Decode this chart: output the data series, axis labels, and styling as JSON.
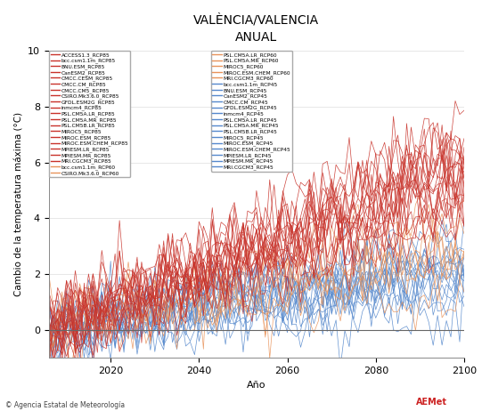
{
  "title": "VALÈNCIA/VALENCIA",
  "subtitle": "ANUAL",
  "ylabel": "Cambio de la temperatura máxima (°C)",
  "xlabel": "Año",
  "xlim": [
    2006,
    2100
  ],
  "ylim": [
    -1,
    10
  ],
  "yticks": [
    0,
    2,
    4,
    6,
    8,
    10
  ],
  "xticks": [
    2020,
    2040,
    2060,
    2080,
    2100
  ],
  "start_year": 2006,
  "end_year": 2100,
  "rcp85_color": "#C8322A",
  "rcp60_color": "#E8935A",
  "rcp45_color": "#5588CC",
  "rcp85_models": [
    "ACCESS1.3_RCP85",
    "bcc.csm1.1m_RCP85",
    "BNU.ESM_RCP85",
    "CanESM2_RCP85",
    "CMCC.CESM_RCP85",
    "CMCC.CM_RCP85",
    "CMCC.CM5_RCP85",
    "CSIRO.Mk3.6.0_RCP85",
    "GFDL.ESM2G_RCP85",
    "inmcm4_RCP85",
    "PSL.CM5A.LR_RCP85",
    "PSL.CM5A.MR_RCP85",
    "PSL.CM5B.LR_RCP85",
    "MIROC5_RCP85",
    "MIROC.ESM_RCP85",
    "MIROC.ESM.CHEM_RCP85",
    "MPIESM.LR_RCP85",
    "MPIESM.MR_RCP85",
    "MRI.CGCM3_RCP85"
  ],
  "rcp60_models": [
    "PSL.CM5A.LR_RCP60",
    "PSL.CM5A.MR_RCP60",
    "MIROC5_RCP60",
    "MIROC.ESM.CHEM_RCP60",
    "MRI.CGCM3_RCP60",
    "bcc.csm1.1m_RCP60",
    "CSIRO.Mk3.6.0_RCP60"
  ],
  "rcp45_models": [
    "bcc.csm1.1m_RCP45",
    "BNU.ESM_RCP45",
    "CanESM2_RCP45",
    "CMCC.CM_RCP45",
    "GFDL.ESM2G_RCP45",
    "inmcm4_RCP45",
    "PSL.CM5A.LR_RCP45",
    "PSL.CM5A.MR_RCP45",
    "PSL.CM5B.LR_RCP45",
    "MIROC5_RCP45",
    "MIROC.ESM_RCP45",
    "MIROC.ESM.CHEM_RCP45",
    "MPIESM.LR_RCP45",
    "MPIESM.MR_RCP45",
    "MRI.CGCM3_RCP45"
  ],
  "legend_left": [
    "ACCESS1.3_RCP85",
    "bcc.csm1.1m_RCP85",
    "BNU.ESM_RCP85",
    "CanESM2_RCP85",
    "CMCC.CESM_RCP85",
    "CMCC.CM_RCP85",
    "CMCC.CM5_RCP85",
    "CSIRO.Mk3.6.0_RCP85",
    "GFDL.ESM2G_RCP85",
    "inmcm4_RCP85",
    "PSL.CM5A.LR_RCP85",
    "PSL.CM5A.MR_RCP85",
    "PSL.CM5B.LR_RCP85",
    "MIROC5_RCP85",
    "MIROC.ESM_RCP85",
    "MIROC.ESM.CHEM_RCP85",
    "MPIESM.LR_RCP85",
    "MPIESM.MR_RCP85",
    "MRI.CGCM3_RCP85",
    "bcc.csm1.1m_RCP60",
    "CSIRO.Mk3.6.0_RCP60"
  ],
  "legend_right": [
    "PSL.CM5A.LR_RCP60",
    "PSL.CM5A.MR_RCP60",
    "MIROC5_RCP60",
    "MIROC.ESM.CHEM_RCP60",
    "MRI.CGCM3_RCP60",
    "bcc.csm1.1m_RCP45",
    "BNU.ESM_RCP45",
    "CanESM2_RCP45",
    "CMCC.CM_RCP45",
    "GFDL.ESM2G_RCP45",
    "inmcm4_RCP45",
    "PSL.CM5A.LR_RCP45",
    "PSL.CM5A.MR_RCP45",
    "PSL.CM5B.LR_RCP45",
    "MIROC5_RCP45",
    "MIROC.ESM_RCP45",
    "MIROC.ESM.CHEM_RCP45",
    "MPIESM.LR_RCP45",
    "MPIESM.MR_RCP45",
    "MRI.CGCM3_RCP45"
  ],
  "background_color": "#FFFFFF",
  "plot_bg_color": "#FFFFFF",
  "seed": 42
}
